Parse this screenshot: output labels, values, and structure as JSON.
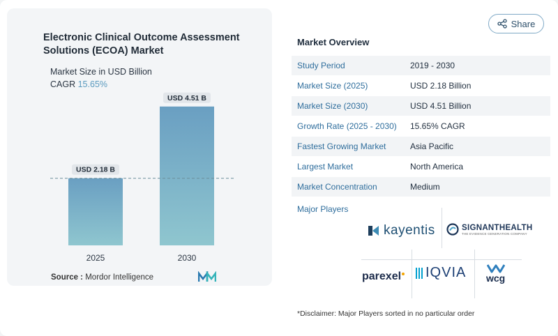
{
  "chart_card": {
    "title": "Electronic Clinical Outcome Assessment Solutions (ECOA) Market",
    "subtitle": "Market Size in USD Billion",
    "cagr_label": "CAGR",
    "cagr_value": "15.65%",
    "source_label": "Source :",
    "source_value": "Mordor Intelligence"
  },
  "chart_data": {
    "type": "bar",
    "categories": [
      "2025",
      "2030"
    ],
    "values": [
      2.18,
      4.51
    ],
    "data_labels": [
      "USD 2.18 B",
      "USD 4.51 B"
    ],
    "ylim": [
      0,
      4.8
    ],
    "reference_line_at": 2.18,
    "bar_color_top": "#6a9fc2",
    "bar_color_bottom": "#8fc6cf"
  },
  "share": {
    "label": "Share"
  },
  "overview": {
    "title": "Market Overview",
    "rows": [
      {
        "label": "Study Period",
        "value": "2019 - 2030"
      },
      {
        "label": "Market Size (2025)",
        "value": "USD 2.18 Billion"
      },
      {
        "label": "Market Size (2030)",
        "value": "USD 4.51 Billion"
      },
      {
        "label": "Growth Rate (2025 - 2030)",
        "value": "15.65% CAGR"
      },
      {
        "label": "Fastest Growing Market",
        "value": "Asia Pacific"
      },
      {
        "label": "Largest Market",
        "value": "North America"
      },
      {
        "label": "Market Concentration",
        "value": "Medium"
      }
    ]
  },
  "players": {
    "title": "Major Players",
    "logos": [
      {
        "name": "kayentis",
        "text": "kayentis"
      },
      {
        "name": "signant",
        "text": "SIGNANTHEALTH",
        "tagline": "THE EVIDENCE GENERATION COMPANY"
      },
      {
        "name": "parexel",
        "text": "parexel"
      },
      {
        "name": "iqvia",
        "text": "IQVIA"
      },
      {
        "name": "wcg",
        "text": "wcg"
      }
    ]
  },
  "disclaimer": "*Disclaimer: Major Players sorted in no particular order",
  "colors": {
    "accent": "#2e6d9c",
    "cagr": "#5b9bbf",
    "border": "#7fa9c6"
  }
}
